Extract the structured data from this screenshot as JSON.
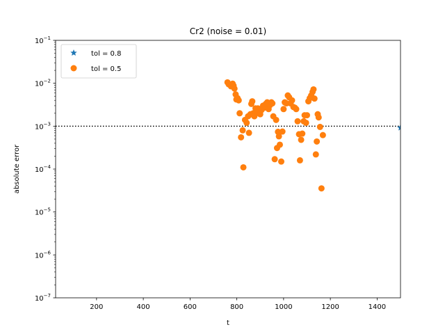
{
  "chart_data": {
    "type": "scatter",
    "title": "Cr2 (noise = 0.01)",
    "xlabel": "t",
    "ylabel": "absolute error",
    "xlim": [
      25,
      1500
    ],
    "ylim": [
      1e-07,
      0.1
    ],
    "yscale": "log",
    "x_ticks": [
      200,
      400,
      600,
      800,
      1000,
      1200,
      1400
    ],
    "y_ticks": [
      {
        "value": 1e-07,
        "base": "10",
        "exp": "−7"
      },
      {
        "value": 1e-06,
        "base": "10",
        "exp": "−6"
      },
      {
        "value": 1e-05,
        "base": "10",
        "exp": "−5"
      },
      {
        "value": 0.0001,
        "base": "10",
        "exp": "−4"
      },
      {
        "value": 0.001,
        "base": "10",
        "exp": "−3"
      },
      {
        "value": 0.01,
        "base": "10",
        "exp": "−2"
      },
      {
        "value": 0.1,
        "base": "10",
        "exp": "−1"
      }
    ],
    "reference_line": {
      "y": 0.001,
      "style": "dotted",
      "color": "#000000"
    },
    "legend_position": "top-left",
    "series": [
      {
        "name": "tol = 0.8",
        "marker": "star",
        "color": "#1f77b4",
        "points": [
          [
            1500,
            0.00092
          ]
        ]
      },
      {
        "name": "tol = 0.5",
        "marker": "circle",
        "color": "#ff7f0e",
        "points": [
          [
            760,
            0.0105
          ],
          [
            765,
            0.0095
          ],
          [
            770,
            0.0092
          ],
          [
            775,
            0.0085
          ],
          [
            782,
            0.0098
          ],
          [
            786,
            0.0088
          ],
          [
            790,
            0.0075
          ],
          [
            795,
            0.0055
          ],
          [
            798,
            0.0042
          ],
          [
            803,
            0.0045
          ],
          [
            808,
            0.004
          ],
          [
            812,
            0.002
          ],
          [
            818,
            0.00055
          ],
          [
            825,
            0.0008
          ],
          [
            828,
            0.00011
          ],
          [
            835,
            0.0014
          ],
          [
            842,
            0.0012
          ],
          [
            848,
            0.0017
          ],
          [
            852,
            0.0007
          ],
          [
            858,
            0.0019
          ],
          [
            862,
            0.0033
          ],
          [
            866,
            0.0038
          ],
          [
            870,
            0.002
          ],
          [
            875,
            0.0017
          ],
          [
            880,
            0.0026
          ],
          [
            885,
            0.0022
          ],
          [
            890,
            0.0026
          ],
          [
            895,
            0.002
          ],
          [
            900,
            0.0019
          ],
          [
            906,
            0.0024
          ],
          [
            912,
            0.003
          ],
          [
            918,
            0.0027
          ],
          [
            924,
            0.0033
          ],
          [
            930,
            0.0036
          ],
          [
            936,
            0.0025
          ],
          [
            942,
            0.0031
          ],
          [
            948,
            0.0036
          ],
          [
            952,
            0.0034
          ],
          [
            956,
            0.0017
          ],
          [
            962,
            0.00017
          ],
          [
            968,
            0.0014
          ],
          [
            972,
            0.00031
          ],
          [
            976,
            0.00074
          ],
          [
            980,
            0.00058
          ],
          [
            984,
            0.00037
          ],
          [
            990,
            0.00015
          ],
          [
            995,
            0.00075
          ],
          [
            1000,
            0.0025
          ],
          [
            1005,
            0.0036
          ],
          [
            1012,
            0.0034
          ],
          [
            1018,
            0.0052
          ],
          [
            1024,
            0.0047
          ],
          [
            1030,
            0.0034
          ],
          [
            1036,
            0.004
          ],
          [
            1042,
            0.0028
          ],
          [
            1048,
            0.0027
          ],
          [
            1054,
            0.0025
          ],
          [
            1060,
            0.0013
          ],
          [
            1066,
            0.00065
          ],
          [
            1070,
            0.00016
          ],
          [
            1075,
            0.00048
          ],
          [
            1080,
            0.00067
          ],
          [
            1086,
            0.0013
          ],
          [
            1090,
            0.0018
          ],
          [
            1096,
            0.0012
          ],
          [
            1100,
            0.0018
          ],
          [
            1106,
            0.0038
          ],
          [
            1112,
            0.0045
          ],
          [
            1118,
            0.0052
          ],
          [
            1124,
            0.0063
          ],
          [
            1128,
            0.0072
          ],
          [
            1132,
            0.0044
          ],
          [
            1138,
            0.00022
          ],
          [
            1142,
            0.00044
          ],
          [
            1146,
            0.0019
          ],
          [
            1150,
            0.0016
          ],
          [
            1156,
            0.00096
          ],
          [
            1162,
            3.55e-05
          ],
          [
            1168,
            0.00062
          ]
        ]
      }
    ]
  }
}
